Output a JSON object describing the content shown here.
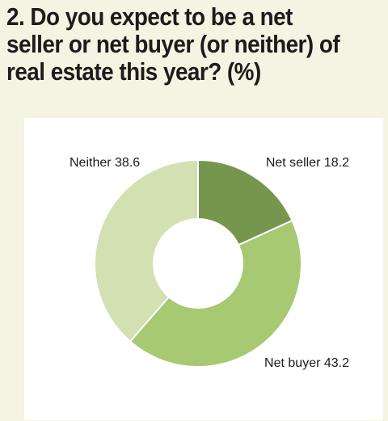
{
  "header": {
    "title": "2. Do you expect to be a net seller or net buyer (or neither) of real estate this year? (%)"
  },
  "colors": {
    "background": "#f5f3e1",
    "panel": "#ffffff",
    "net_seller": "#76964e",
    "net_buyer": "#a6c972",
    "neither": "#d2e0b2"
  },
  "chart_data": {
    "type": "pie",
    "style": "donut",
    "title": "2. Do you expect to be a net seller or net buyer (or neither) of real estate this year? (%)",
    "units": "%",
    "start": "12 o'clock, clockwise",
    "slices": [
      {
        "name": "Net seller",
        "value": 18.2,
        "label": "Net seller 18.2",
        "color": "#76964e"
      },
      {
        "name": "Net buyer",
        "value": 43.2,
        "label": "Net buyer 43.2",
        "color": "#a6c972"
      },
      {
        "name": "Neither",
        "value": 38.6,
        "label": "Neither 38.6",
        "color": "#d2e0b2"
      }
    ]
  }
}
